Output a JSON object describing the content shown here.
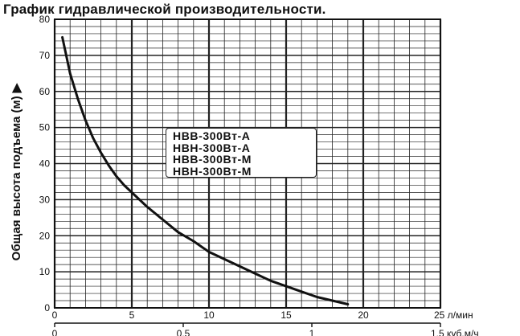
{
  "chart_data": {
    "type": "line",
    "title": "График гидравлической производительности.",
    "ylabel": "Общая высота подъема (м) ▶",
    "xlabel": "",
    "x_unit_primary": "л/мин",
    "x_unit_secondary": "куб.м/ч",
    "xlim": [
      0,
      25
    ],
    "ylim": [
      0,
      80
    ],
    "x_ticks": [
      "0",
      "5",
      "10",
      "15",
      "20",
      "25 л/мин"
    ],
    "y_ticks": [
      "0",
      "10",
      "20",
      "30",
      "40",
      "50",
      "60",
      "70",
      "80"
    ],
    "x2_ticks": [
      "0",
      "0.5",
      "1",
      "1.5 куб.м/ч"
    ],
    "x2_tick_values_lpm": [
      0,
      8.333,
      16.667,
      25
    ],
    "grid": true,
    "legend_position": "center",
    "legend_entries": [
      "НВВ-300Вт-А",
      "НВН-300Вт-А",
      "НВВ-300Вт-М",
      "НВН-300Вт-М"
    ],
    "series": [
      {
        "color": "#111111",
        "points": [
          [
            0.5,
            75
          ],
          [
            1.0,
            65
          ],
          [
            1.5,
            58
          ],
          [
            2.0,
            52
          ],
          [
            2.5,
            47
          ],
          [
            3.0,
            43
          ],
          [
            3.5,
            39.5
          ],
          [
            4.0,
            36.5
          ],
          [
            4.5,
            34
          ],
          [
            5.0,
            32
          ],
          [
            6.0,
            28
          ],
          [
            7.0,
            24.5
          ],
          [
            8.0,
            21
          ],
          [
            9.0,
            18.5
          ],
          [
            10.0,
            15.5
          ],
          [
            11.0,
            13.5
          ],
          [
            12.0,
            11.5
          ],
          [
            13.0,
            9.5
          ],
          [
            14.0,
            7.5
          ],
          [
            15.0,
            6
          ],
          [
            16.0,
            4.5
          ],
          [
            17.0,
            3
          ],
          [
            18.0,
            2
          ],
          [
            19.0,
            1
          ]
        ]
      }
    ]
  }
}
